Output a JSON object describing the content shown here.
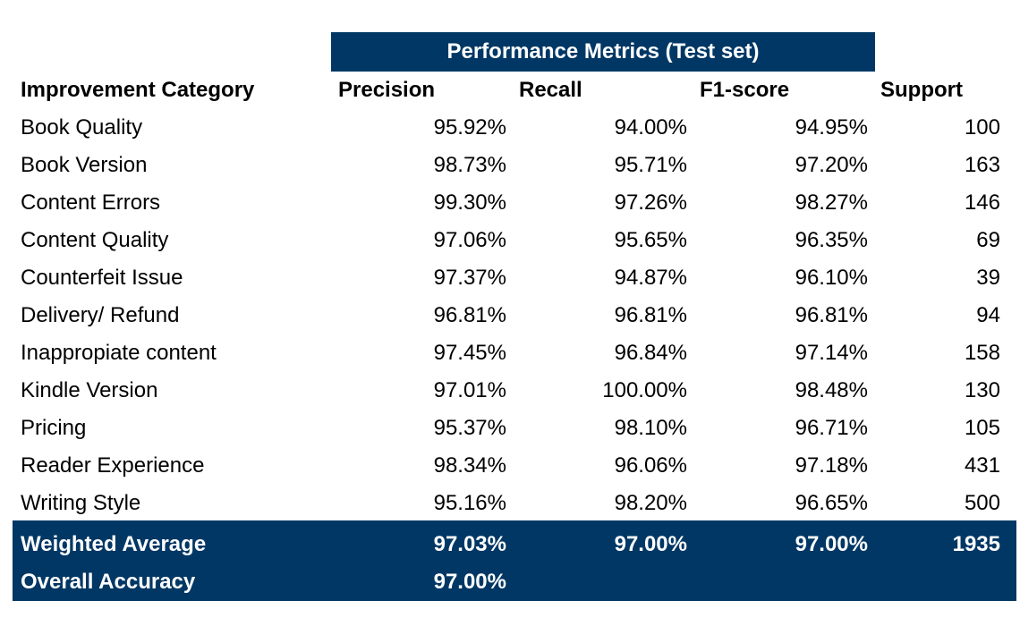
{
  "title": "Performance Metrics (Test set)",
  "colors": {
    "banner": "#003764",
    "banner_text": "#ffffff",
    "body_text": "#000000"
  },
  "columns": [
    "Improvement Category",
    "Precision",
    "Recall",
    "F1-score",
    "Support"
  ],
  "rows": [
    [
      "Book Quality",
      "95.92%",
      "94.00%",
      "94.95%",
      "100"
    ],
    [
      "Book Version",
      "98.73%",
      "95.71%",
      "97.20%",
      "163"
    ],
    [
      "Content Errors",
      "99.30%",
      "97.26%",
      "98.27%",
      "146"
    ],
    [
      "Content Quality",
      "97.06%",
      "95.65%",
      "96.35%",
      "69"
    ],
    [
      "Counterfeit Issue",
      "97.37%",
      "94.87%",
      "96.10%",
      "39"
    ],
    [
      "Delivery/ Refund",
      "96.81%",
      "96.81%",
      "96.81%",
      "94"
    ],
    [
      "Inappropiate content",
      "97.45%",
      "96.84%",
      "97.14%",
      "158"
    ],
    [
      "Kindle Version",
      "97.01%",
      "100.00%",
      "98.48%",
      "130"
    ],
    [
      "Pricing",
      "95.37%",
      "98.10%",
      "96.71%",
      "105"
    ],
    [
      "Reader Experience",
      "98.34%",
      "96.06%",
      "97.18%",
      "431"
    ],
    [
      "Writing Style",
      "95.16%",
      "98.20%",
      "96.65%",
      "500"
    ]
  ],
  "weighted_average": [
    "Weighted Average",
    "97.03%",
    "97.00%",
    "97.00%",
    "1935"
  ],
  "overall_accuracy": [
    "Overall Accuracy",
    "97.00%"
  ]
}
